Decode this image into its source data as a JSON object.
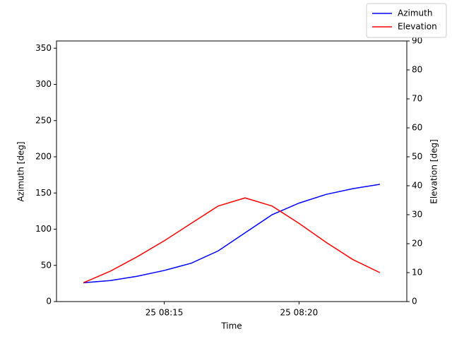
{
  "chart_data": {
    "type": "line",
    "x_label": "Time",
    "y_label": "Azimuth [deg]",
    "y2_label": "Elevation [deg]",
    "x": [
      "25 08:12",
      "25 08:13",
      "25 08:14",
      "25 08:15",
      "25 08:16",
      "25 08:17",
      "25 08:18",
      "25 08:19",
      "25 08:20",
      "25 08:21",
      "25 08:22",
      "25 08:23"
    ],
    "series": [
      {
        "name": "Azimuth",
        "color": "#0000ff",
        "values": [
          26,
          29,
          35,
          43,
          53,
          70,
          95,
          120,
          136,
          148,
          156,
          162
        ]
      },
      {
        "name": "Elevation",
        "color": "#ff0000",
        "axis": "y2",
        "values": [
          6.5,
          10.5,
          15.5,
          21,
          27,
          33,
          35.8,
          33,
          27,
          20.5,
          14.5,
          10
        ]
      }
    ],
    "xlim": [
      "25 08:11",
      "25 08:24"
    ],
    "xticks": [
      "25 08:15",
      "25 08:20"
    ],
    "ylim": [
      0,
      360
    ],
    "yticks": [
      0,
      50,
      100,
      150,
      200,
      250,
      300,
      350
    ],
    "y2lim": [
      0,
      90
    ],
    "y2ticks": [
      0,
      10,
      20,
      30,
      40,
      50,
      60,
      70,
      80,
      90
    ],
    "legend": "upper right",
    "grid": false
  }
}
